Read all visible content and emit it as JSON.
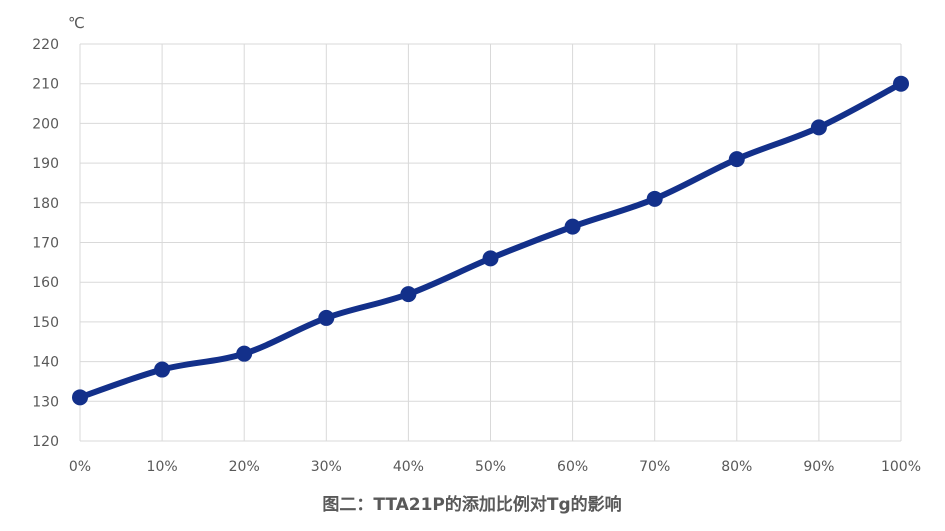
{
  "chart_data": {
    "type": "line",
    "title": "图二：TTA21P的添加比例对Tg的影响",
    "ylabel": "℃",
    "xlabel": "",
    "categories": [
      "0%",
      "10%",
      "20%",
      "30%",
      "40%",
      "50%",
      "60%",
      "70%",
      "80%",
      "90%",
      "100%"
    ],
    "series": [
      {
        "values": [
          131,
          138,
          142,
          151,
          157,
          166,
          174,
          181,
          191,
          199,
          210
        ]
      }
    ],
    "ylim": [
      120,
      220
    ],
    "yticks": [
      120,
      130,
      140,
      150,
      160,
      170,
      180,
      190,
      200,
      210,
      220
    ],
    "grid": true,
    "colors": {
      "series": "#13308A",
      "grid": "#D9D9D9",
      "text": "#595959"
    }
  }
}
